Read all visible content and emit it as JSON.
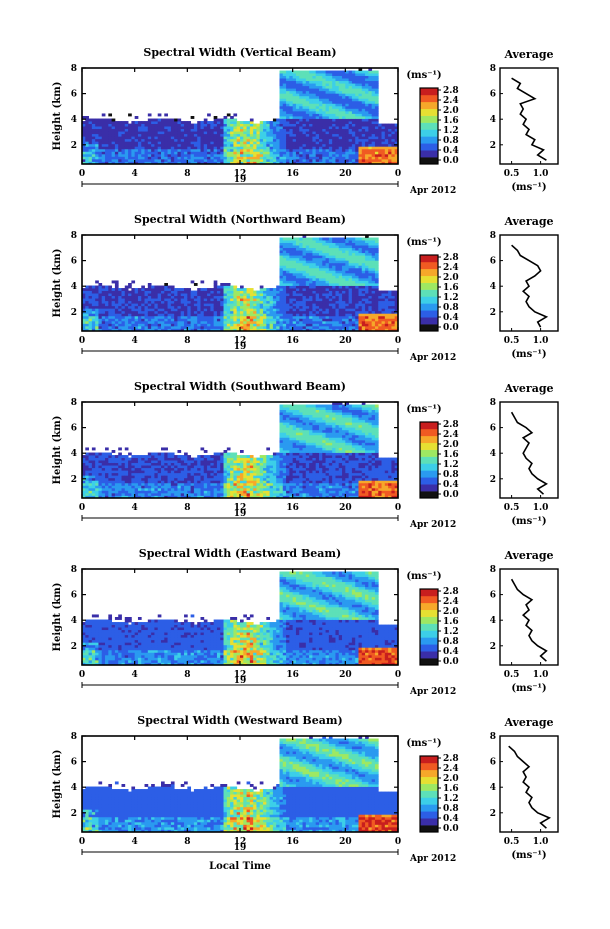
{
  "figure": {
    "date_label": "Apr 2012",
    "day_label": "19",
    "x_axis_label": "Local Time",
    "height_axis_label": "Height (km)",
    "colorbar_unit": "(ms⁻¹)",
    "average_title": "Average",
    "average_unit": "(ms⁻¹)"
  },
  "colors": {
    "colormap": [
      "#111111",
      "#3a2ea8",
      "#2c5ee6",
      "#2a9af0",
      "#3ccfe8",
      "#5de0b8",
      "#9ee862",
      "#e6e032",
      "#f6a82a",
      "#f05a22",
      "#c81e1e"
    ],
    "missing": "#ffffff"
  },
  "chart_data": [
    {
      "type": "heatmap",
      "title": "Spectral Width (Vertical Beam)",
      "xlabel": "",
      "ylabel": "Height (km)",
      "xlim": [
        0,
        24
      ],
      "ylim": [
        0.5,
        8
      ],
      "xticks": [
        "0",
        "4",
        "8",
        "12",
        "16",
        "20",
        "0"
      ],
      "yticks": [
        "2",
        "4",
        "6",
        "8"
      ],
      "colorbar_ticks": [
        "0.0",
        "0.4",
        "0.8",
        "1.2",
        "1.6",
        "2.0",
        "2.4",
        "2.8"
      ],
      "colorbar_range": [
        0,
        3
      ],
      "average_profile": {
        "title": "Average",
        "xlabel": "(ms⁻¹)",
        "xticks": [
          "0.5",
          "1.0"
        ],
        "xlim": [
          0.3,
          1.3
        ],
        "ylim": [
          0.5,
          8
        ],
        "yticks": [
          "2",
          "4",
          "6",
          "8"
        ],
        "height_km": [
          0.8,
          1.2,
          1.6,
          2.0,
          2.4,
          2.8,
          3.2,
          3.6,
          4.0,
          4.4,
          4.8,
          5.2,
          5.6,
          6.0,
          6.4,
          6.8,
          7.2
        ],
        "width_ms": [
          1.1,
          0.95,
          1.05,
          0.85,
          0.9,
          0.75,
          0.8,
          0.7,
          0.75,
          0.65,
          0.7,
          0.65,
          0.9,
          0.75,
          0.6,
          0.65,
          0.5
        ]
      }
    },
    {
      "type": "heatmap",
      "title": "Spectral Width (Northward Beam)",
      "xlabel": "",
      "ylabel": "Height (km)",
      "xlim": [
        0,
        24
      ],
      "ylim": [
        0.5,
        8
      ],
      "xticks": [
        "0",
        "4",
        "8",
        "12",
        "16",
        "20",
        "0"
      ],
      "yticks": [
        "2",
        "4",
        "6",
        "8"
      ],
      "colorbar_ticks": [
        "0.0",
        "0.4",
        "0.8",
        "1.2",
        "1.6",
        "2.0",
        "2.4",
        "2.8"
      ],
      "colorbar_range": [
        0,
        3
      ],
      "average_profile": {
        "title": "Average",
        "xlabel": "(ms⁻¹)",
        "xticks": [
          "0.5",
          "1.0"
        ],
        "xlim": [
          0.3,
          1.3
        ],
        "ylim": [
          0.5,
          8
        ],
        "yticks": [
          "2",
          "4",
          "6",
          "8"
        ],
        "height_km": [
          0.8,
          1.2,
          1.6,
          2.0,
          2.4,
          2.8,
          3.2,
          3.6,
          4.0,
          4.4,
          4.8,
          5.2,
          5.6,
          6.0,
          6.4,
          6.8,
          7.2
        ],
        "width_ms": [
          1.0,
          0.95,
          1.1,
          0.9,
          0.8,
          0.75,
          0.8,
          0.7,
          0.8,
          0.75,
          0.9,
          1.0,
          0.95,
          0.8,
          0.65,
          0.6,
          0.5
        ]
      }
    },
    {
      "type": "heatmap",
      "title": "Spectral Width (Southward Beam)",
      "xlabel": "",
      "ylabel": "Height (km)",
      "xlim": [
        0,
        24
      ],
      "ylim": [
        0.5,
        8
      ],
      "xticks": [
        "0",
        "4",
        "8",
        "12",
        "16",
        "20",
        "0"
      ],
      "yticks": [
        "2",
        "4",
        "6",
        "8"
      ],
      "colorbar_ticks": [
        "0.0",
        "0.4",
        "0.8",
        "1.2",
        "1.6",
        "2.0",
        "2.4",
        "2.8"
      ],
      "colorbar_range": [
        0,
        3
      ],
      "average_profile": {
        "title": "Average",
        "xlabel": "(ms⁻¹)",
        "xticks": [
          "0.5",
          "1.0"
        ],
        "xlim": [
          0.3,
          1.3
        ],
        "ylim": [
          0.5,
          8
        ],
        "yticks": [
          "2",
          "4",
          "6",
          "8"
        ],
        "height_km": [
          0.8,
          1.2,
          1.6,
          2.0,
          2.4,
          2.8,
          3.2,
          3.6,
          4.0,
          4.4,
          4.8,
          5.2,
          5.6,
          6.0,
          6.4,
          6.8,
          7.2
        ],
        "width_ms": [
          1.05,
          0.95,
          1.1,
          0.95,
          0.85,
          0.8,
          0.85,
          0.75,
          0.7,
          0.75,
          0.8,
          0.7,
          0.85,
          0.75,
          0.6,
          0.55,
          0.5
        ]
      }
    },
    {
      "type": "heatmap",
      "title": "Spectral Width (Eastward Beam)",
      "xlabel": "",
      "ylabel": "Height (km)",
      "xlim": [
        0,
        24
      ],
      "ylim": [
        0.5,
        8
      ],
      "xticks": [
        "0",
        "4",
        "8",
        "12",
        "16",
        "20",
        "0"
      ],
      "yticks": [
        "2",
        "4",
        "6",
        "8"
      ],
      "colorbar_ticks": [
        "0.0",
        "0.4",
        "0.8",
        "1.2",
        "1.6",
        "2.0",
        "2.4",
        "2.8"
      ],
      "colorbar_range": [
        0,
        3
      ],
      "average_profile": {
        "title": "Average",
        "xlabel": "(ms⁻¹)",
        "xticks": [
          "0.5",
          "1.0"
        ],
        "xlim": [
          0.3,
          1.3
        ],
        "ylim": [
          0.5,
          8
        ],
        "yticks": [
          "2",
          "4",
          "6",
          "8"
        ],
        "height_km": [
          0.8,
          1.2,
          1.6,
          2.0,
          2.4,
          2.8,
          3.2,
          3.6,
          4.0,
          4.4,
          4.8,
          5.2,
          5.6,
          6.0,
          6.4,
          6.8,
          7.2
        ],
        "width_ms": [
          1.1,
          1.0,
          1.1,
          0.95,
          0.85,
          0.8,
          0.85,
          0.75,
          0.8,
          0.7,
          0.8,
          0.75,
          0.85,
          0.7,
          0.6,
          0.55,
          0.5
        ]
      }
    },
    {
      "type": "heatmap",
      "title": "Spectral Width (Westward Beam)",
      "xlabel": "Local Time",
      "ylabel": "Height (km)",
      "xlim": [
        0,
        24
      ],
      "ylim": [
        0.5,
        8
      ],
      "xticks": [
        "0",
        "4",
        "8",
        "12",
        "16",
        "20",
        "0"
      ],
      "yticks": [
        "2",
        "4",
        "6",
        "8"
      ],
      "colorbar_ticks": [
        "0.0",
        "0.4",
        "0.8",
        "1.2",
        "1.6",
        "2.0",
        "2.4",
        "2.8"
      ],
      "colorbar_range": [
        0,
        3
      ],
      "average_profile": {
        "title": "Average",
        "xlabel": "(ms⁻¹)",
        "xticks": [
          "0.5",
          "1.0"
        ],
        "xlim": [
          0.3,
          1.3
        ],
        "ylim": [
          0.5,
          8
        ],
        "yticks": [
          "2",
          "4",
          "6",
          "8"
        ],
        "height_km": [
          0.8,
          1.2,
          1.6,
          2.0,
          2.4,
          2.8,
          3.2,
          3.6,
          4.0,
          4.4,
          4.8,
          5.2,
          5.6,
          6.0,
          6.4,
          6.8,
          7.2
        ],
        "width_ms": [
          1.1,
          1.0,
          1.15,
          0.95,
          0.85,
          0.8,
          0.85,
          0.75,
          0.8,
          0.7,
          0.75,
          0.7,
          0.8,
          0.7,
          0.6,
          0.55,
          0.45
        ]
      }
    }
  ]
}
